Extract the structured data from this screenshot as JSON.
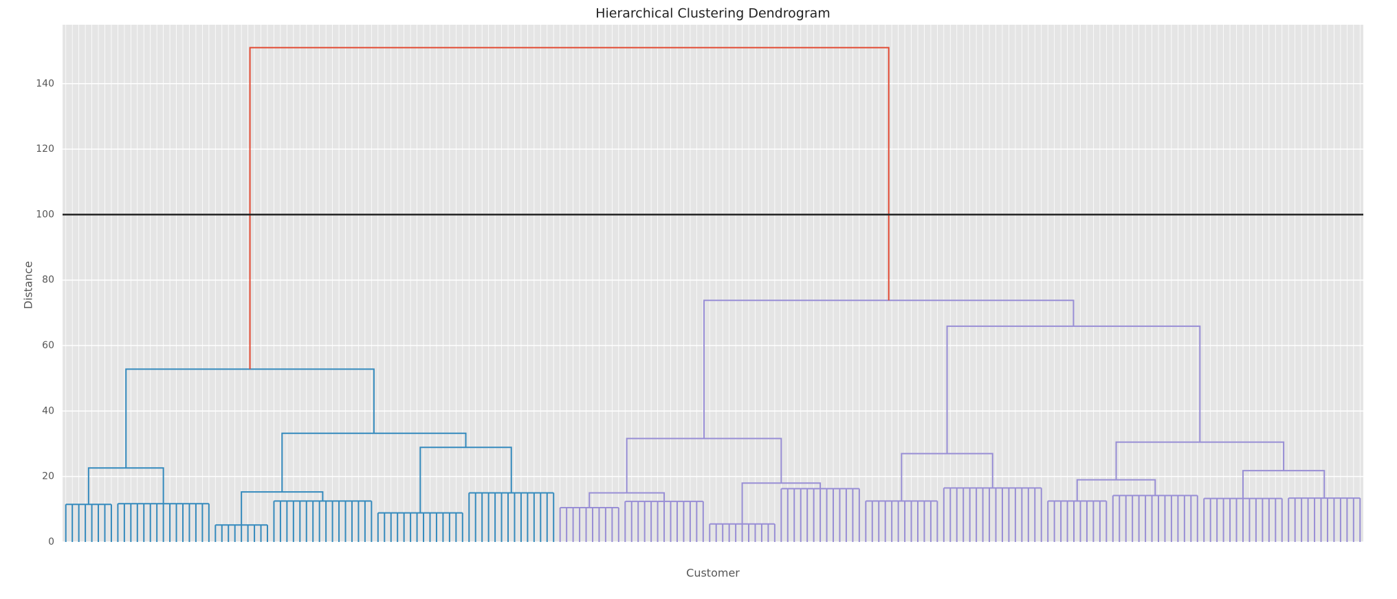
{
  "chart_data": {
    "type": "dendrogram",
    "title": "Hierarchical Clustering Dendrogram",
    "x_label": "Customer",
    "y_label": "Distance",
    "ylim": [
      0,
      158
    ],
    "yticks": [
      0,
      20,
      40,
      60,
      80,
      100,
      120,
      140
    ],
    "grid": true,
    "threshold": 100,
    "threshold_color": "#222222",
    "background": "#e5e5e5",
    "tree": {
      "height": 151,
      "color": "#e24a33",
      "children": [
        {
          "height": 52.8,
          "color": "#348abd",
          "children": [
            {
              "height": 22.6,
              "children": [
                {
                  "height": 11.5,
                  "leaves": 8
                },
                {
                  "height": 11.7,
                  "leaves": 15
                }
              ]
            },
            {
              "height": 33.2,
              "children": [
                {
                  "height": 15.3,
                  "children": [
                    {
                      "height": 5.2,
                      "leaves": 9
                    },
                    {
                      "height": 12.5,
                      "leaves": 16
                    }
                  ]
                },
                {
                  "height": 28.9,
                  "children": [
                    {
                      "height": 8.9,
                      "leaves": 14
                    },
                    {
                      "height": 15,
                      "leaves": 14
                    }
                  ]
                }
              ]
            }
          ]
        },
        {
          "height": 73.8,
          "color": "#988ed5",
          "children": [
            {
              "height": 31.6,
              "children": [
                {
                  "height": 15,
                  "children": [
                    {
                      "height": 10.5,
                      "leaves": 10
                    },
                    {
                      "height": 12.4,
                      "leaves": 13
                    }
                  ]
                },
                {
                  "height": 18,
                  "children": [
                    {
                      "height": 5.5,
                      "leaves": 11
                    },
                    {
                      "height": 16.3,
                      "leaves": 13
                    }
                  ]
                }
              ]
            },
            {
              "height": 65.9,
              "children": [
                {
                  "height": 27,
                  "children": [
                    {
                      "height": 12.5,
                      "leaves": 12
                    },
                    {
                      "height": 16.5,
                      "leaves": 16
                    }
                  ]
                },
                {
                  "height": 30.5,
                  "children": [
                    {
                      "height": 19,
                      "children": [
                        {
                          "height": 12.5,
                          "leaves": 10
                        },
                        {
                          "height": 14.2,
                          "leaves": 14
                        }
                      ]
                    },
                    {
                      "height": 21.8,
                      "children": [
                        {
                          "height": 13.3,
                          "leaves": 13
                        },
                        {
                          "height": 13.4,
                          "leaves": 12
                        }
                      ]
                    }
                  ]
                }
              ]
            }
          ]
        }
      ]
    }
  }
}
